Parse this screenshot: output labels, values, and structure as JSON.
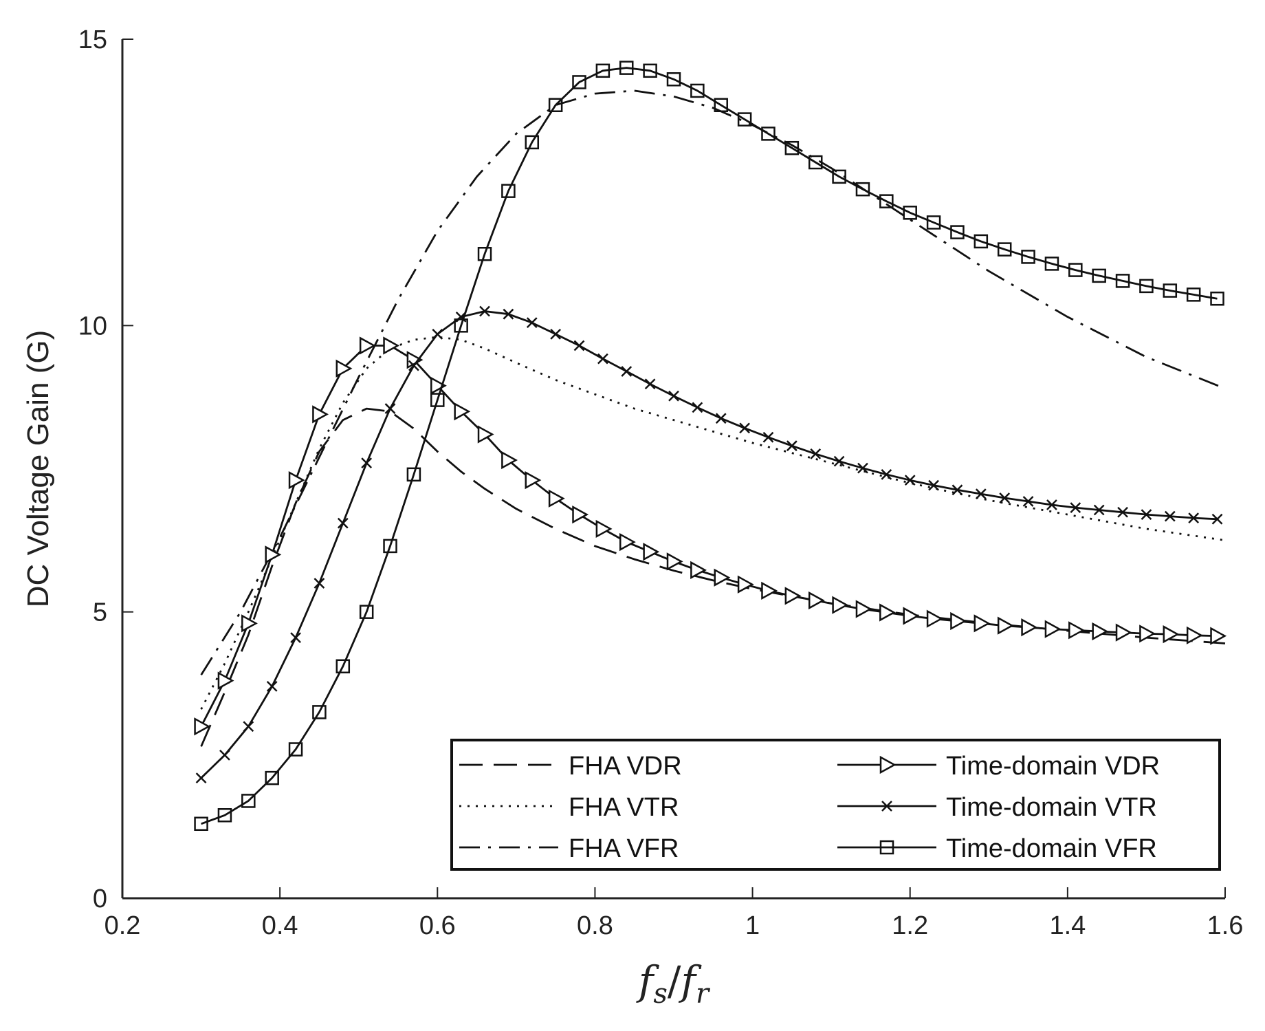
{
  "chart_data": {
    "type": "line",
    "title": "",
    "xlabel": "f_s/f_r",
    "ylabel": "DC Voltage Gain (G)",
    "xlim": [
      0.2,
      1.6
    ],
    "ylim": [
      0,
      15
    ],
    "xticks": [
      "0.2",
      "0.4",
      "0.6",
      "0.8",
      "1",
      "1.2",
      "1.4",
      "1.6"
    ],
    "yticks": [
      "0",
      "5",
      "10",
      "15"
    ],
    "grid": false,
    "legend_placement": "bottom-right",
    "series": [
      {
        "name": "FHA VDR",
        "style": "dashed",
        "marker": "none",
        "x": [
          0.3,
          0.33,
          0.36,
          0.39,
          0.42,
          0.45,
          0.48,
          0.51,
          0.54,
          0.57,
          0.6,
          0.63,
          0.66,
          0.7,
          0.75,
          0.8,
          0.85,
          0.9,
          0.95,
          1.0,
          1.1,
          1.2,
          1.3,
          1.4,
          1.5,
          1.6
        ],
        "y": [
          2.65,
          3.6,
          4.6,
          5.8,
          6.9,
          7.8,
          8.35,
          8.55,
          8.5,
          8.2,
          7.8,
          7.45,
          7.15,
          6.8,
          6.45,
          6.15,
          5.92,
          5.72,
          5.55,
          5.4,
          5.15,
          4.95,
          4.8,
          4.67,
          4.55,
          4.45
        ]
      },
      {
        "name": "FHA VTR",
        "style": "dotted",
        "marker": "none",
        "x": [
          0.3,
          0.33,
          0.36,
          0.39,
          0.42,
          0.45,
          0.48,
          0.51,
          0.54,
          0.57,
          0.6,
          0.63,
          0.66,
          0.7,
          0.75,
          0.8,
          0.85,
          0.9,
          0.95,
          1.0,
          1.1,
          1.2,
          1.3,
          1.4,
          1.5,
          1.6
        ],
        "y": [
          3.3,
          4.1,
          5.0,
          5.95,
          6.9,
          7.85,
          8.65,
          9.25,
          9.6,
          9.75,
          9.8,
          9.75,
          9.6,
          9.35,
          9.05,
          8.8,
          8.55,
          8.35,
          8.15,
          7.95,
          7.6,
          7.25,
          6.95,
          6.7,
          6.45,
          6.25
        ]
      },
      {
        "name": "FHA VFR",
        "style": "dashdot",
        "marker": "none",
        "x": [
          0.3,
          0.35,
          0.4,
          0.45,
          0.5,
          0.55,
          0.6,
          0.65,
          0.7,
          0.75,
          0.8,
          0.85,
          0.9,
          0.95,
          1.0,
          1.05,
          1.1,
          1.15,
          1.2,
          1.3,
          1.4,
          1.5,
          1.6
        ],
        "y": [
          3.9,
          5.0,
          6.3,
          7.7,
          9.1,
          10.45,
          11.65,
          12.6,
          13.35,
          13.85,
          14.05,
          14.1,
          14.0,
          13.8,
          13.5,
          13.15,
          12.75,
          12.3,
          11.85,
          10.95,
          10.15,
          9.45,
          8.9
        ]
      },
      {
        "name": "Time-domain VDR",
        "style": "solid",
        "marker": "triangle-right",
        "x": [
          0.3,
          0.33,
          0.36,
          0.39,
          0.42,
          0.45,
          0.48,
          0.51,
          0.54,
          0.57,
          0.6,
          0.63,
          0.66,
          0.69,
          0.72,
          0.75,
          0.78,
          0.81,
          0.84,
          0.87,
          0.9,
          0.93,
          0.96,
          0.99,
          1.02,
          1.05,
          1.08,
          1.11,
          1.14,
          1.17,
          1.2,
          1.23,
          1.26,
          1.29,
          1.32,
          1.35,
          1.38,
          1.41,
          1.44,
          1.47,
          1.5,
          1.53,
          1.56,
          1.59
        ],
        "y": [
          3.0,
          3.8,
          4.8,
          6.0,
          7.3,
          8.45,
          9.25,
          9.65,
          9.65,
          9.4,
          8.95,
          8.5,
          8.1,
          7.65,
          7.3,
          6.98,
          6.7,
          6.45,
          6.22,
          6.05,
          5.88,
          5.73,
          5.6,
          5.48,
          5.37,
          5.28,
          5.2,
          5.12,
          5.05,
          4.99,
          4.93,
          4.88,
          4.84,
          4.8,
          4.76,
          4.73,
          4.7,
          4.68,
          4.66,
          4.64,
          4.62,
          4.61,
          4.59,
          4.58
        ]
      },
      {
        "name": "Time-domain VTR",
        "style": "solid",
        "marker": "x",
        "x": [
          0.3,
          0.33,
          0.36,
          0.39,
          0.42,
          0.45,
          0.48,
          0.51,
          0.54,
          0.57,
          0.6,
          0.63,
          0.66,
          0.69,
          0.72,
          0.75,
          0.78,
          0.81,
          0.84,
          0.87,
          0.9,
          0.93,
          0.96,
          0.99,
          1.02,
          1.05,
          1.08,
          1.11,
          1.14,
          1.17,
          1.2,
          1.23,
          1.26,
          1.29,
          1.32,
          1.35,
          1.38,
          1.41,
          1.44,
          1.47,
          1.5,
          1.53,
          1.56,
          1.59
        ],
        "y": [
          2.1,
          2.5,
          3.0,
          3.7,
          4.55,
          5.5,
          6.55,
          7.6,
          8.55,
          9.3,
          9.85,
          10.15,
          10.25,
          10.2,
          10.05,
          9.85,
          9.65,
          9.42,
          9.2,
          8.98,
          8.77,
          8.57,
          8.38,
          8.21,
          8.05,
          7.9,
          7.76,
          7.63,
          7.51,
          7.4,
          7.3,
          7.21,
          7.13,
          7.06,
          6.99,
          6.93,
          6.87,
          6.82,
          6.78,
          6.74,
          6.7,
          6.67,
          6.64,
          6.62
        ]
      },
      {
        "name": "Time-domain VFR",
        "style": "solid",
        "marker": "square",
        "x": [
          0.3,
          0.33,
          0.36,
          0.39,
          0.42,
          0.45,
          0.48,
          0.51,
          0.54,
          0.57,
          0.6,
          0.63,
          0.66,
          0.69,
          0.72,
          0.75,
          0.78,
          0.81,
          0.84,
          0.87,
          0.9,
          0.93,
          0.96,
          0.99,
          1.02,
          1.05,
          1.08,
          1.11,
          1.14,
          1.17,
          1.2,
          1.23,
          1.26,
          1.29,
          1.32,
          1.35,
          1.38,
          1.41,
          1.44,
          1.47,
          1.5,
          1.53,
          1.56,
          1.59
        ],
        "y": [
          1.3,
          1.45,
          1.7,
          2.1,
          2.6,
          3.25,
          4.05,
          5.0,
          6.15,
          7.4,
          8.7,
          10.0,
          11.25,
          12.35,
          13.2,
          13.85,
          14.25,
          14.45,
          14.5,
          14.45,
          14.3,
          14.1,
          13.85,
          13.6,
          13.35,
          13.1,
          12.85,
          12.6,
          12.38,
          12.17,
          11.97,
          11.8,
          11.63,
          11.47,
          11.33,
          11.2,
          11.08,
          10.97,
          10.87,
          10.78,
          10.69,
          10.61,
          10.54,
          10.47
        ]
      }
    ],
    "legend": [
      {
        "label": "FHA VDR",
        "style": "dashed",
        "marker": "none"
      },
      {
        "label": "FHA VTR",
        "style": "dotted",
        "marker": "none"
      },
      {
        "label": "FHA VFR",
        "style": "dashdot",
        "marker": "none"
      },
      {
        "label": "Time-domain VDR",
        "style": "solid",
        "marker": "triangle-right"
      },
      {
        "label": "Time-domain VTR",
        "style": "solid",
        "marker": "x"
      },
      {
        "label": "Time-domain VFR",
        "style": "solid",
        "marker": "square"
      }
    ]
  }
}
